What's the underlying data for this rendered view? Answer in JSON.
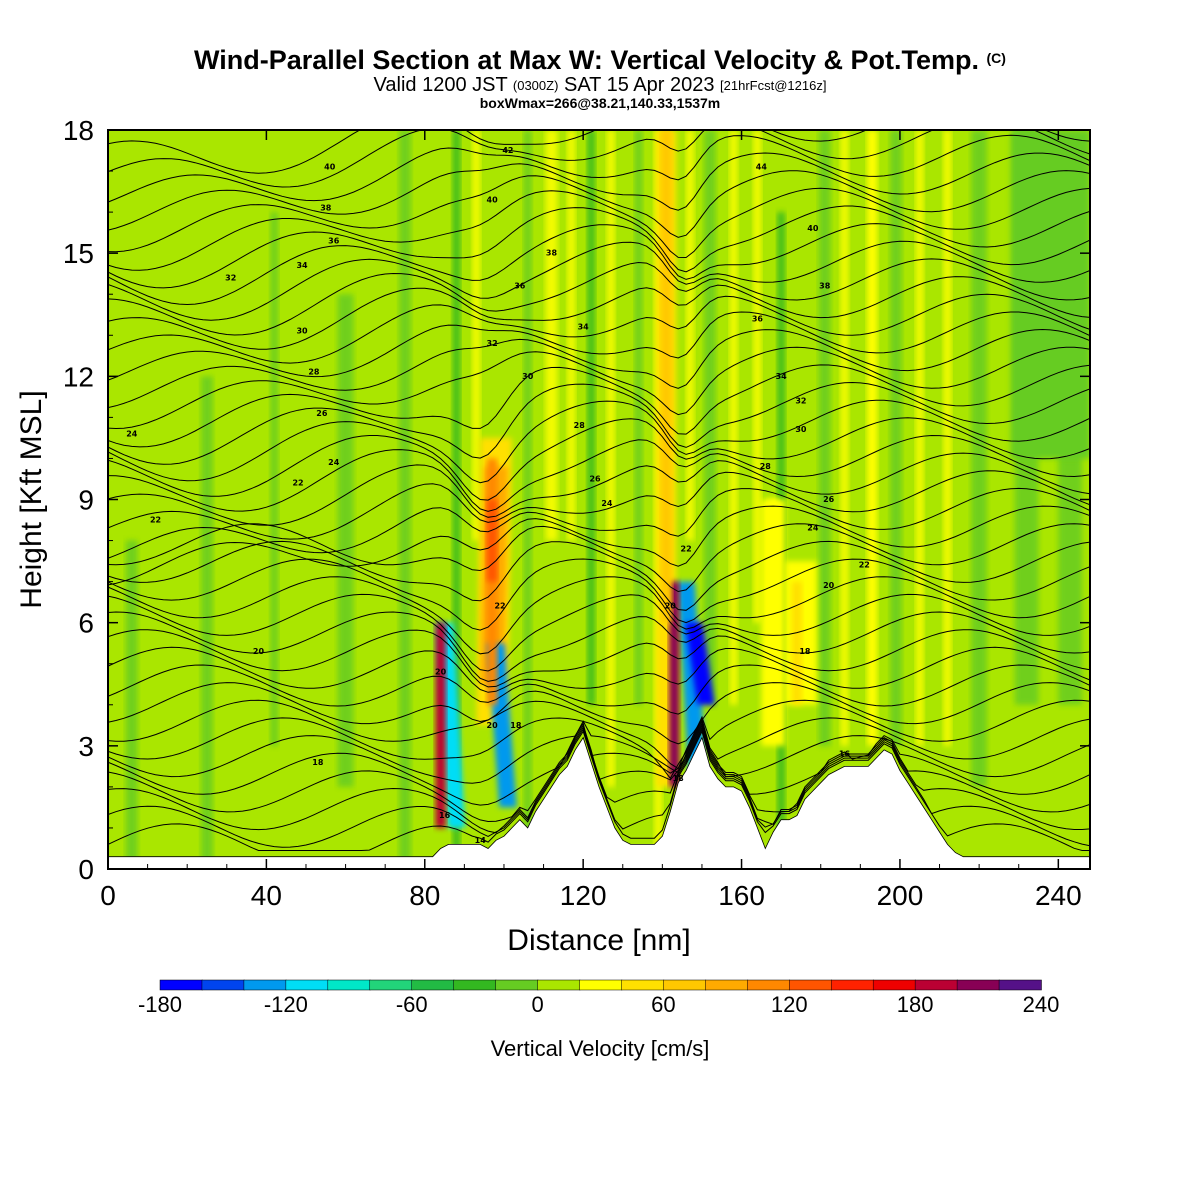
{
  "title": {
    "main": "Wind-Parallel Section at Max W: Vertical Velocity & Pot.Temp.",
    "copyright": "(C)",
    "valid_prefix": "Valid 1200 JST",
    "valid_utc": "(0300Z)",
    "valid_date": "SAT 15 Apr 2023",
    "forecast": "[21hrFcst@1216z]",
    "box_info": "boxWmax=266@38.21,140.33,1537m"
  },
  "chart_data": {
    "type": "heatmap",
    "title": "Wind-Parallel Section at Max W: Vertical Velocity & Pot.Temp.",
    "xlabel": "Distance [nm]",
    "ylabel": "Height [Kft MSL]",
    "xlim": [
      0,
      248
    ],
    "ylim": [
      0,
      18
    ],
    "x_ticks": [
      0,
      40,
      80,
      120,
      160,
      200,
      240
    ],
    "y_ticks": [
      0,
      3,
      6,
      9,
      12,
      15,
      18
    ],
    "colorbar": {
      "label": "Vertical Velocity [cm/s]",
      "boundaries": [
        -180,
        -160,
        -140,
        -120,
        -100,
        -80,
        -60,
        -40,
        -20,
        0,
        20,
        40,
        60,
        80,
        100,
        120,
        140,
        160,
        180,
        200,
        220,
        240
      ],
      "tick_labels": [
        "-180",
        "-120",
        "-60",
        "0",
        "60",
        "120",
        "180",
        "240"
      ],
      "colors": [
        "#0000ff",
        "#0044ee",
        "#0099ee",
        "#00ddf6",
        "#00e8c8",
        "#22d47a",
        "#22bb44",
        "#33b820",
        "#66cc22",
        "#aae600",
        "#ffff00",
        "#ffe000",
        "#ffc800",
        "#ffaa00",
        "#ff8800",
        "#ff5500",
        "#ff2200",
        "#ee0000",
        "#bb0033",
        "#880055",
        "#551188"
      ]
    },
    "terrain": {
      "x": [
        0,
        82,
        84,
        86,
        88,
        90,
        92,
        94,
        96,
        98,
        100,
        102,
        104,
        106,
        108,
        110,
        112,
        114,
        116,
        118,
        120,
        122,
        124,
        126,
        128,
        130,
        132,
        134,
        136,
        138,
        140,
        142,
        144,
        146,
        148,
        150,
        152,
        154,
        156,
        158,
        160,
        162,
        164,
        166,
        168,
        170,
        172,
        174,
        176,
        178,
        180,
        182,
        184,
        186,
        188,
        190,
        192,
        194,
        196,
        198,
        200,
        202,
        204,
        206,
        208,
        210,
        212,
        214,
        216,
        248
      ],
      "kft": [
        0.3,
        0.3,
        0.5,
        0.6,
        0.6,
        0.6,
        0.6,
        0.6,
        0.5,
        0.7,
        0.8,
        1.0,
        1.2,
        1.0,
        1.4,
        1.7,
        2.0,
        2.3,
        2.5,
        2.9,
        3.2,
        2.6,
        2.0,
        1.5,
        1.0,
        0.7,
        0.6,
        0.6,
        0.6,
        0.6,
        0.8,
        1.4,
        2.1,
        2.4,
        2.8,
        3.2,
        2.5,
        2.2,
        2.0,
        2.0,
        1.9,
        1.5,
        1.0,
        0.5,
        0.9,
        1.2,
        1.2,
        1.3,
        1.7,
        1.9,
        2.1,
        2.3,
        2.4,
        2.5,
        2.5,
        2.5,
        2.5,
        2.7,
        2.9,
        2.8,
        2.4,
        2.1,
        1.8,
        1.5,
        1.2,
        0.9,
        0.6,
        0.4,
        0.3,
        0.3
      ]
    },
    "updraft_features": [
      {
        "x": 84,
        "z_bottom": 1.0,
        "z_top": 6.0,
        "w": 180
      },
      {
        "x": 97,
        "z_bottom": 4.0,
        "z_top": 10.0,
        "w": 100
      },
      {
        "x": 97,
        "z_bottom": 7.0,
        "z_top": 9.0,
        "w": 130
      },
      {
        "x": 143,
        "z_bottom": 2.0,
        "z_top": 7.0,
        "w": 200
      },
      {
        "x": 141,
        "z_bottom": 6.0,
        "z_top": 18.0,
        "w": 60
      },
      {
        "x": 168,
        "z_bottom": 4.0,
        "z_top": 9.0,
        "w": 30
      },
      {
        "x": 174,
        "z_bottom": 4.0,
        "z_top": 7.0,
        "w": 40
      },
      {
        "x": 193,
        "z_bottom": 3.0,
        "z_top": 18.0,
        "w": 30
      }
    ],
    "downdraft_features": [
      {
        "x": 88,
        "z_bottom": 1.0,
        "z_top": 6.0,
        "w": -110
      },
      {
        "x": 101,
        "z_bottom": 1.5,
        "z_top": 5.5,
        "w": -130
      },
      {
        "x": 149,
        "z_bottom": 2.0,
        "z_top": 7.0,
        "w": -140
      },
      {
        "x": 151,
        "z_bottom": 4.0,
        "z_top": 6.0,
        "w": -180
      }
    ],
    "isentrope_labels": [
      {
        "value": "40",
        "x": 56,
        "z": 17.1
      },
      {
        "value": "38",
        "x": 55,
        "z": 16.1
      },
      {
        "value": "36",
        "x": 57,
        "z": 15.3
      },
      {
        "value": "34",
        "x": 49,
        "z": 14.7
      },
      {
        "value": "32",
        "x": 31,
        "z": 14.4
      },
      {
        "value": "30",
        "x": 49,
        "z": 13.1
      },
      {
        "value": "28",
        "x": 52,
        "z": 12.1
      },
      {
        "value": "26",
        "x": 54,
        "z": 11.1
      },
      {
        "value": "24",
        "x": 6,
        "z": 10.6
      },
      {
        "value": "24",
        "x": 57,
        "z": 9.9
      },
      {
        "value": "22",
        "x": 48,
        "z": 9.4
      },
      {
        "value": "22",
        "x": 12,
        "z": 8.5
      },
      {
        "value": "20",
        "x": 38,
        "z": 5.3
      },
      {
        "value": "18",
        "x": 53,
        "z": 2.6
      },
      {
        "value": "42",
        "x": 101,
        "z": 17.5
      },
      {
        "value": "40",
        "x": 97,
        "z": 16.3
      },
      {
        "value": "38",
        "x": 112,
        "z": 15.0
      },
      {
        "value": "36",
        "x": 104,
        "z": 14.2
      },
      {
        "value": "34",
        "x": 120,
        "z": 13.2
      },
      {
        "value": "32",
        "x": 97,
        "z": 12.8
      },
      {
        "value": "30",
        "x": 106,
        "z": 12.0
      },
      {
        "value": "28",
        "x": 119,
        "z": 10.8
      },
      {
        "value": "26",
        "x": 123,
        "z": 9.5
      },
      {
        "value": "24",
        "x": 126,
        "z": 8.9
      },
      {
        "value": "22",
        "x": 99,
        "z": 6.4
      },
      {
        "value": "20",
        "x": 97,
        "z": 3.5
      },
      {
        "value": "18",
        "x": 103,
        "z": 3.5
      },
      {
        "value": "14",
        "x": 94,
        "z": 0.7
      },
      {
        "value": "16",
        "x": 85,
        "z": 1.3
      },
      {
        "value": "20",
        "x": 84,
        "z": 4.8
      },
      {
        "value": "44",
        "x": 165,
        "z": 17.1
      },
      {
        "value": "40",
        "x": 178,
        "z": 15.6
      },
      {
        "value": "38",
        "x": 181,
        "z": 14.2
      },
      {
        "value": "36",
        "x": 164,
        "z": 13.4
      },
      {
        "value": "34",
        "x": 170,
        "z": 12.0
      },
      {
        "value": "32",
        "x": 175,
        "z": 11.4
      },
      {
        "value": "30",
        "x": 175,
        "z": 10.7
      },
      {
        "value": "28",
        "x": 166,
        "z": 9.8
      },
      {
        "value": "26",
        "x": 182,
        "z": 9.0
      },
      {
        "value": "24",
        "x": 178,
        "z": 8.3
      },
      {
        "value": "22",
        "x": 191,
        "z": 7.4
      },
      {
        "value": "22",
        "x": 146,
        "z": 7.8
      },
      {
        "value": "20",
        "x": 182,
        "z": 6.9
      },
      {
        "value": "20",
        "x": 142,
        "z": 6.4
      },
      {
        "value": "18",
        "x": 176,
        "z": 5.3
      },
      {
        "value": "18",
        "x": 144,
        "z": 2.2
      },
      {
        "value": "16",
        "x": 186,
        "z": 2.8
      }
    ]
  },
  "colorbar_label": "Vertical Velocity [cm/s]"
}
